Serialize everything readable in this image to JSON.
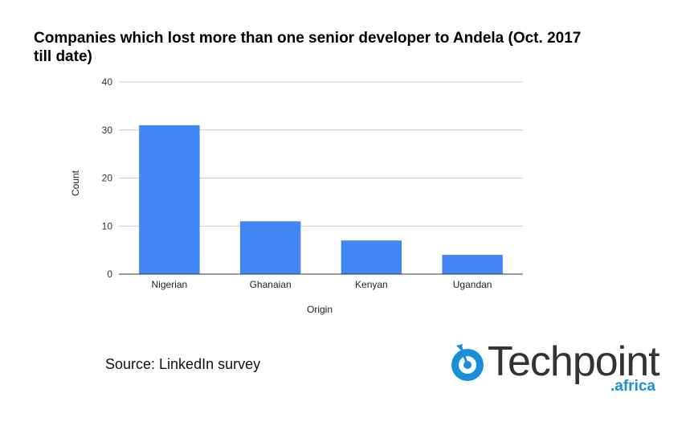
{
  "chart_data": {
    "type": "bar",
    "title": "Companies which lost more than one senior developer to Andela (Oct. 2017 till date)",
    "xlabel": "Origin",
    "ylabel": "Count",
    "categories": [
      "Nigerian",
      "Ghanaian",
      "Kenyan",
      "Ugandan"
    ],
    "values": [
      31,
      11,
      7,
      4
    ],
    "ylim": [
      0,
      40
    ],
    "yticks": [
      0,
      10,
      20,
      30,
      40
    ],
    "grid": true,
    "bar_color": "#4285f4"
  },
  "source_text": "Source: LinkedIn survey",
  "logo": {
    "word": "Techpoint",
    "sub": ".africa",
    "icon": "target-arrow-icon",
    "color": "#1a8fd6"
  }
}
